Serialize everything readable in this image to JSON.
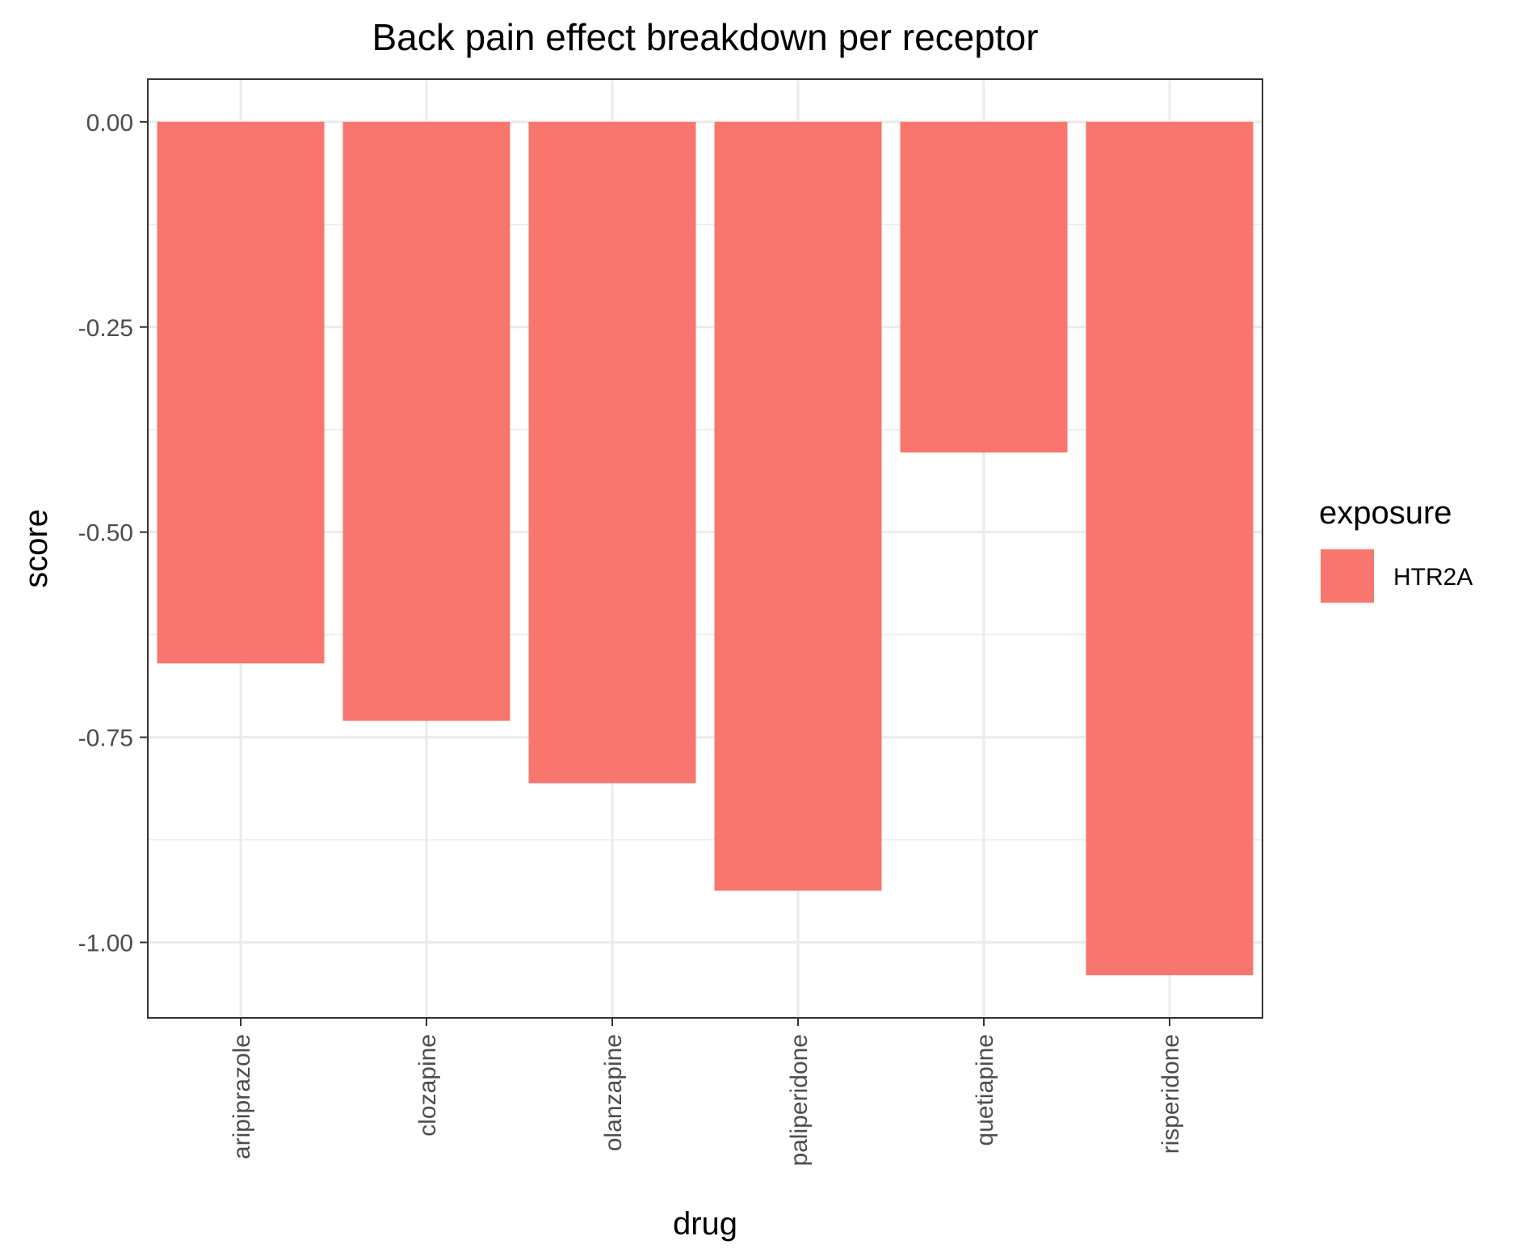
{
  "chart_data": {
    "type": "bar",
    "title": "Back pain effect breakdown per receptor",
    "xlabel": "drug",
    "ylabel": "score",
    "categories": [
      "aripiprazole",
      "clozapine",
      "olanzapine",
      "paliperidone",
      "quetiapine",
      "risperidone"
    ],
    "series": [
      {
        "name": "HTR2A",
        "color": "#F8766D",
        "values": [
          -0.66,
          -0.73,
          -0.806,
          -0.937,
          -0.403,
          -1.04
        ]
      }
    ],
    "ylim": [
      -1.092,
      0.052
    ],
    "yticks": [
      0.0,
      -0.25,
      -0.5,
      -0.75,
      -1.0
    ],
    "ytick_labels": [
      "0.00",
      "-0.25",
      "-0.50",
      "-0.75",
      "-1.00"
    ],
    "grid": true,
    "legend": {
      "title": "exposure",
      "position": "right"
    },
    "colors": {
      "panel_border": "#333333",
      "grid": "#ebebeb",
      "tick_text": "#4d4d4d"
    }
  }
}
